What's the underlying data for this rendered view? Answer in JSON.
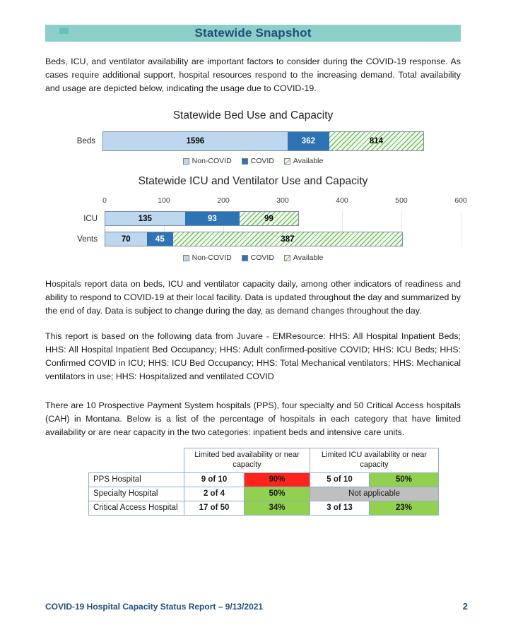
{
  "banner": {
    "title": "Statewide Snapshot"
  },
  "paragraphs": {
    "intro": "Beds, ICU, and ventilator availability are important factors to consider during the COVID-19 response. As cases require additional support, hospital resources respond to the increasing demand. Total availability and usage are depicted below, indicating the usage due to COVID-19.",
    "reporting": "Hospitals report data on beds, ICU and ventilator capacity daily, among other indicators of readiness and ability to respond to COVID-19 at their local facility. Data is updated throughout the day and summarized by the end of day. Data is subject to change during the day, as demand changes throughout the day.",
    "sources": "This report is based on the following data from Juvare - EMResource: HHS: All Hospital Inpatient Beds; HHS: All Hospital Inpatient Bed Occupancy; HHS: Adult confirmed-positive COVID; HHS: ICU Beds; HHS: Confirmed COVID in ICU; HHS: ICU Bed Occupancy; HHS: Total Mechanical ventilators; HHS: Mechanical ventilators in use; HHS: Hospitalized and ventilated COVID",
    "hospitals": "There are 10 Prospective Payment System hospitals (PPS), four specialty and 50 Critical Access hospitals (CAH) in Montana. Below is a list of the percentage of hospitals in each category that have limited availability or are near capacity in the two categories: inpatient beds and intensive care units."
  },
  "chart_data": [
    {
      "type": "bar",
      "stacked": true,
      "orientation": "horizontal",
      "title": "Statewide Bed Use and Capacity",
      "categories": [
        "Beds"
      ],
      "series": [
        {
          "name": "Non-COVID",
          "values": [
            1596
          ],
          "color": "#bdd7ee",
          "text_color": "#000000"
        },
        {
          "name": "COVID",
          "values": [
            362
          ],
          "color": "#2e74b5",
          "text_color": "#ffffff"
        },
        {
          "name": "Available",
          "values": [
            814
          ],
          "pattern": "hatch",
          "text_color": "#000000"
        }
      ],
      "legend_position": "bottom",
      "grid": false
    },
    {
      "type": "bar",
      "stacked": true,
      "orientation": "horizontal",
      "title": "Statewide ICU and Ventilator Use and Capacity",
      "categories": [
        "ICU",
        "Vents"
      ],
      "x_ticks": [
        0,
        100,
        200,
        300,
        400,
        500,
        600
      ],
      "xlim": [
        0,
        600
      ],
      "series": [
        {
          "name": "Non-COVID",
          "values": [
            135,
            70
          ],
          "color": "#bdd7ee",
          "text_color": "#000000"
        },
        {
          "name": "COVID",
          "values": [
            93,
            45
          ],
          "color": "#2e74b5",
          "text_color": "#ffffff"
        },
        {
          "name": "Available",
          "values": [
            99,
            387
          ],
          "pattern": "hatch",
          "text_color": "#000000"
        }
      ],
      "legend_position": "bottom",
      "grid": true
    }
  ],
  "table": {
    "headers": {
      "bed": "Limited bed availability or near capacity",
      "icu": "Limited ICU availability or near capacity"
    },
    "rows": [
      {
        "label": "PPS Hospital",
        "bed_count": "9 of 10",
        "bed_pct": "90%",
        "bed_pct_color": "#fe241d",
        "icu_count": "5 of 10",
        "icu_pct": "50%",
        "icu_pct_color": "#92d050"
      },
      {
        "label": "Specialty Hospital",
        "bed_count": "2 of 4",
        "bed_pct": "50%",
        "bed_pct_color": "#92d050",
        "icu_note": "Not applicable",
        "icu_note_color": "#bfbfbf"
      },
      {
        "label": "Critical Access Hospital",
        "bed_count": "17 of 50",
        "bed_pct": "34%",
        "bed_pct_color": "#92d050",
        "icu_count": "3 of 13",
        "icu_pct": "23%",
        "icu_pct_color": "#92d050"
      }
    ]
  },
  "footer": {
    "title": "COVID-19 Hospital Capacity Status Report – 9/13/2021",
    "page": "2"
  },
  "colors": {
    "banner": "#8ccfc8",
    "teal_mark": "#5ec3ba",
    "navy": "#1f4e79",
    "non_covid": "#bdd7ee",
    "covid": "#2e74b5",
    "available_bg": "#f3faf0",
    "available_line": "#6fbf60",
    "red": "#fe241d",
    "green": "#92d050",
    "gray": "#bfbfbf",
    "table_border": "#8eaec9"
  }
}
